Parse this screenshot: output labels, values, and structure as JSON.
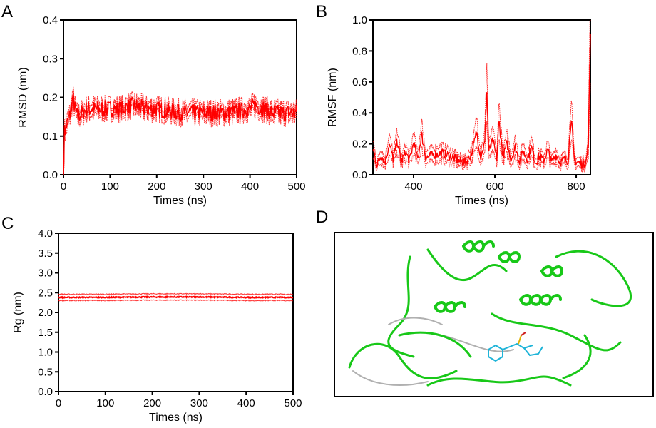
{
  "colors": {
    "series": "#ff0000",
    "axis": "#000000",
    "protein": "#18c818",
    "ligand": "#1fb4d8"
  },
  "panels": {
    "A": {
      "letter": "A"
    },
    "B": {
      "letter": "B"
    },
    "C": {
      "letter": "C"
    },
    "D": {
      "letter": "D",
      "caption_icon": "protein-ligand-structure"
    }
  },
  "chart_data": [
    {
      "id": "A",
      "type": "line",
      "title": "",
      "xlabel": "Times (ns)",
      "ylabel": "RMSD (nm)",
      "xlim": [
        0,
        500
      ],
      "ylim": [
        0,
        0.4
      ],
      "xticks": [
        0,
        100,
        200,
        300,
        400,
        500
      ],
      "yticks": [
        "0.0",
        "0.1",
        "0.2",
        "0.3",
        "0.4"
      ],
      "series": [
        {
          "name": "RMSD",
          "x": [
            0,
            2,
            5,
            10,
            15,
            20,
            25,
            30,
            40,
            50,
            75,
            100,
            125,
            150,
            175,
            200,
            250,
            300,
            350,
            400,
            410,
            450,
            500
          ],
          "values": [
            0.0,
            0.11,
            0.12,
            0.14,
            0.16,
            0.2,
            0.17,
            0.15,
            0.16,
            0.17,
            0.17,
            0.17,
            0.17,
            0.18,
            0.17,
            0.17,
            0.16,
            0.16,
            0.16,
            0.17,
            0.18,
            0.16,
            0.16
          ]
        }
      ]
    },
    {
      "id": "B",
      "type": "line",
      "title": "",
      "xlabel": "Times (ns)",
      "ylabel": "RMSF (nm)",
      "xlim": [
        300,
        835
      ],
      "ylim": [
        0,
        1.0
      ],
      "xticks": [
        400,
        600,
        800
      ],
      "yticks": [
        "0.0",
        "0.2",
        "0.4",
        "0.6",
        "0.8",
        "1.0"
      ],
      "series": [
        {
          "name": "RMSF",
          "x": [
            300,
            310,
            320,
            330,
            340,
            350,
            360,
            370,
            380,
            390,
            400,
            410,
            420,
            430,
            450,
            470,
            490,
            510,
            530,
            545,
            555,
            565,
            575,
            580,
            585,
            595,
            605,
            610,
            620,
            630,
            640,
            650,
            660,
            670,
            680,
            690,
            700,
            710,
            720,
            730,
            740,
            750,
            760,
            770,
            780,
            788,
            795,
            805,
            815,
            825,
            830,
            835
          ],
          "values": [
            0.17,
            0.06,
            0.13,
            0.08,
            0.2,
            0.1,
            0.22,
            0.08,
            0.15,
            0.09,
            0.21,
            0.1,
            0.26,
            0.11,
            0.13,
            0.14,
            0.12,
            0.09,
            0.08,
            0.15,
            0.28,
            0.12,
            0.2,
            0.55,
            0.15,
            0.22,
            0.1,
            0.35,
            0.12,
            0.2,
            0.1,
            0.18,
            0.09,
            0.15,
            0.1,
            0.18,
            0.08,
            0.12,
            0.09,
            0.16,
            0.08,
            0.13,
            0.08,
            0.1,
            0.09,
            0.38,
            0.09,
            0.08,
            0.07,
            0.09,
            0.2,
            0.92
          ]
        }
      ]
    },
    {
      "id": "C",
      "type": "line",
      "title": "",
      "xlabel": "Times (ns)",
      "ylabel": "Rg (nm)",
      "xlim": [
        0,
        500
      ],
      "ylim": [
        0,
        4.0
      ],
      "xticks": [
        0,
        100,
        200,
        300,
        400,
        500
      ],
      "yticks": [
        "0.0",
        "0.5",
        "1.0",
        "1.5",
        "2.0",
        "2.5",
        "3.0",
        "3.5",
        "4.0"
      ],
      "series": [
        {
          "name": "Rg",
          "x": [
            0,
            100,
            200,
            300,
            400,
            500
          ],
          "values": [
            2.38,
            2.38,
            2.39,
            2.39,
            2.38,
            2.38
          ]
        }
      ]
    }
  ]
}
